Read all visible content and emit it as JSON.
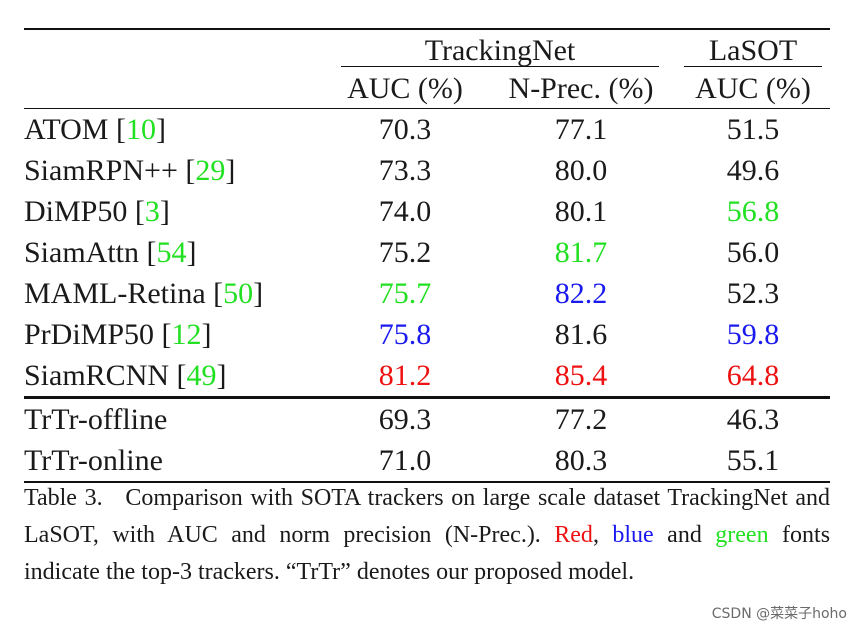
{
  "table": {
    "group_headers": {
      "trackingnet": "TrackingNet",
      "lasot": "LaSOT"
    },
    "sub_headers": {
      "tn_auc": "AUC (%)",
      "tn_nprec": "N-Prec. (%)",
      "lasot_auc": "AUC (%)"
    },
    "rows": [
      {
        "name": "ATOM ",
        "ref": "10",
        "tn_auc": "70.3",
        "tn_nprec": "77.1",
        "lasot_auc": "51.5"
      },
      {
        "name": "SiamRPN++ ",
        "ref": "29",
        "tn_auc": "73.3",
        "tn_nprec": "80.0",
        "lasot_auc": "49.6"
      },
      {
        "name": "DiMP50 ",
        "ref": "3",
        "tn_auc": "74.0",
        "tn_nprec": "80.1",
        "lasot_auc": "56.8"
      },
      {
        "name": "SiamAttn ",
        "ref": "54",
        "tn_auc": "75.2",
        "tn_nprec": "81.7",
        "lasot_auc": "56.0"
      },
      {
        "name": "MAML-Retina ",
        "ref": "50",
        "tn_auc": "75.7",
        "tn_nprec": "82.2",
        "lasot_auc": "52.3"
      },
      {
        "name": "PrDiMP50 ",
        "ref": "12",
        "tn_auc": "75.8",
        "tn_nprec": "81.6",
        "lasot_auc": "59.8"
      },
      {
        "name": "SiamRCNN ",
        "ref": "49",
        "tn_auc": "81.2",
        "tn_nprec": "85.4",
        "lasot_auc": "64.8"
      },
      {
        "name": "TrTr-offline",
        "ref": "",
        "tn_auc": "69.3",
        "tn_nprec": "77.2",
        "lasot_auc": "46.3"
      },
      {
        "name": "TrTr-online",
        "ref": "",
        "tn_auc": "71.0",
        "tn_nprec": "80.3",
        "lasot_auc": "55.1"
      }
    ]
  },
  "caption": {
    "table_label": "Table 3.",
    "text_1": "Comparison with SOTA trackers on large scale dataset TrackingNet and LaSOT, with AUC and norm precision (N-Prec.).",
    "word_red": "Red",
    "sep_1": ",",
    "word_blue": "blue",
    "and_word": "and",
    "word_green": "green",
    "text_2": "fonts indicate the top-3 trackers. “TrTr” denotes our proposed model."
  },
  "watermark": "CSDN @菜菜子hoho",
  "colors": {
    "rank_first": "#ee1111",
    "rank_second": "#1a1aef",
    "rank_third": "#22e022",
    "reference_link": "#22e022"
  }
}
